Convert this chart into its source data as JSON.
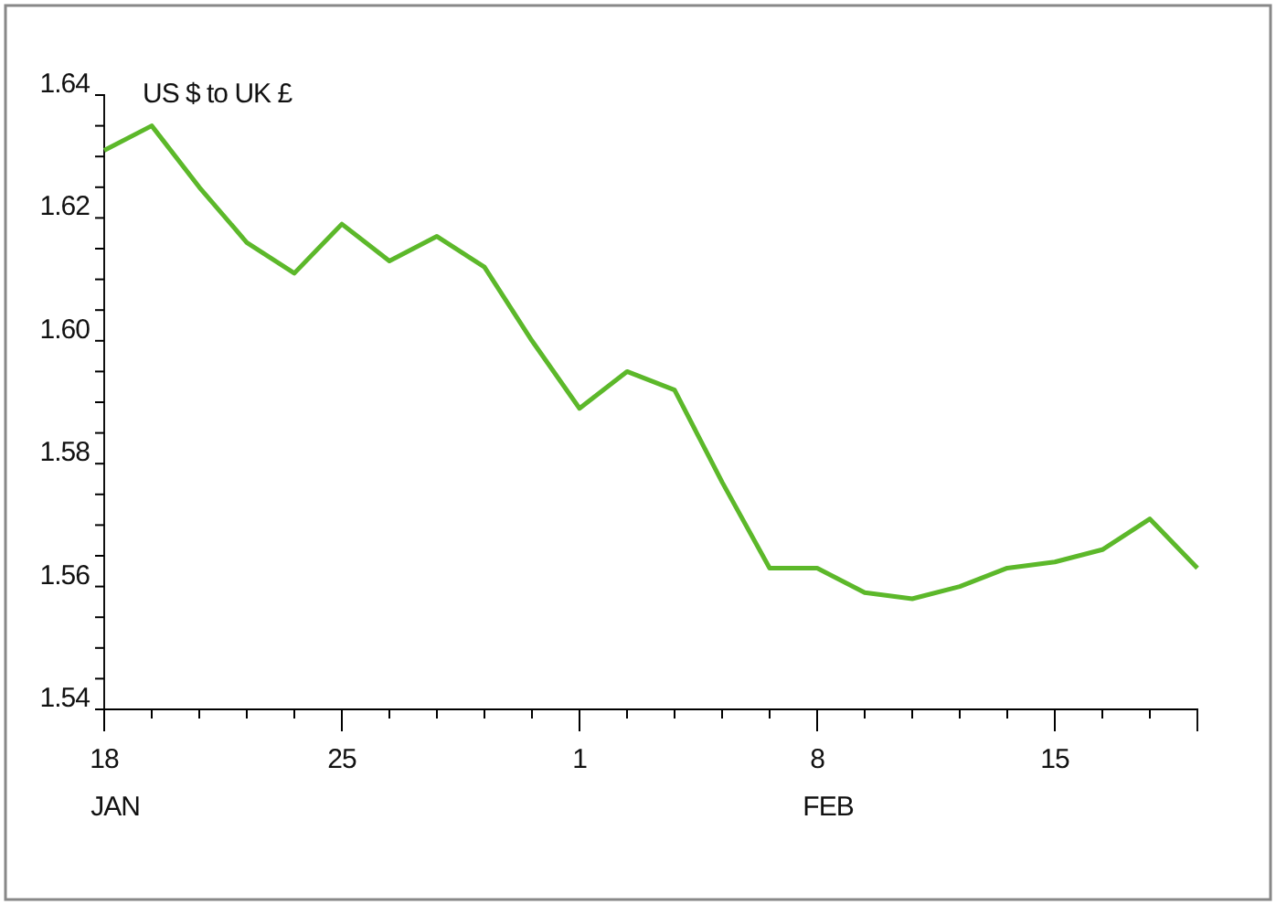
{
  "chart_data": {
    "type": "line",
    "title": "US $ to UK £",
    "categories": [
      "18\nJAN",
      null,
      null,
      null,
      null,
      "25",
      null,
      null,
      null,
      null,
      "1",
      null,
      null,
      null,
      null,
      "8\nFEB",
      null,
      null,
      null,
      null,
      "15",
      null,
      null,
      null
    ],
    "series": [
      {
        "color": "#5cb82a",
        "values": [
          1.631,
          1.635,
          1.625,
          1.616,
          1.611,
          1.619,
          1.613,
          1.617,
          1.612,
          1.6,
          1.589,
          1.595,
          1.592,
          1.577,
          1.563,
          1.563,
          1.559,
          1.558,
          1.56,
          1.563,
          1.564,
          1.566,
          1.571,
          1.563
        ]
      }
    ],
    "ylim": [
      1.54,
      1.64
    ],
    "yticks": [
      1.54,
      {
        "value": 1.545,
        "label": null
      },
      {
        "value": 1.55,
        "label": null
      },
      {
        "value": 1.555,
        "label": null
      },
      1.56,
      {
        "value": 1.565,
        "label": null
      },
      {
        "value": 1.57,
        "label": null
      },
      {
        "value": 1.575,
        "label": null
      },
      1.58,
      {
        "value": 1.585,
        "label": null
      },
      {
        "value": 1.59,
        "label": null
      },
      {
        "value": 1.595,
        "label": null
      },
      {
        "value": 1.6,
        "label": "1.60"
      },
      {
        "value": 1.605,
        "label": null
      },
      {
        "value": 1.61,
        "label": null
      },
      {
        "value": 1.615,
        "label": null
      },
      1.62,
      {
        "value": 1.625,
        "label": null
      },
      {
        "value": 1.63,
        "label": null
      },
      {
        "value": 1.635,
        "label": null
      },
      1.64
    ],
    "grid": false,
    "marker": "none",
    "line_style": "solid"
  }
}
